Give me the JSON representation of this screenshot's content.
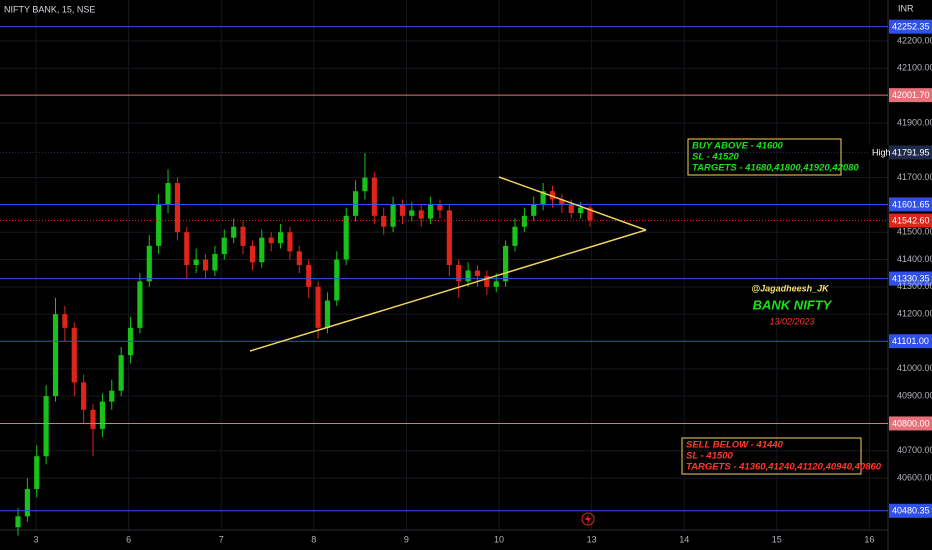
{
  "chart_data": {
    "type": "candlestick",
    "title": "NIFTY BANK, 15, NSE",
    "currency": "INR",
    "categories": [
      "3",
      "6",
      "7",
      "8",
      "9",
      "10",
      "13",
      "14",
      "15",
      "16"
    ],
    "up_color": "#19c219",
    "down_color": "#e0241a",
    "grid": true,
    "ylim": [
      40410,
      42350
    ],
    "yticks": [
      {
        "value": 40600,
        "label": "40600.00"
      },
      {
        "value": 40700,
        "label": "40700.00"
      },
      {
        "value": 40900,
        "label": "40900.00"
      },
      {
        "value": 41000,
        "label": "41000.00"
      },
      {
        "value": 41200,
        "label": "41200.00"
      },
      {
        "value": 41300,
        "label": "41300.00"
      },
      {
        "value": 41400,
        "label": "41400.00"
      },
      {
        "value": 41500,
        "label": "41500.00"
      },
      {
        "value": 41700,
        "label": "41700.00"
      },
      {
        "value": 41900,
        "label": "41900.00"
      },
      {
        "value": 42100,
        "label": "42100.00"
      },
      {
        "value": 42200,
        "label": "42200.00"
      }
    ],
    "open": [
      40420,
      40460,
      40560,
      40680,
      40900,
      41200,
      41150,
      40950,
      40850,
      40780,
      40880,
      40920,
      41050,
      41150,
      41320,
      41450,
      41600,
      41680,
      41500,
      41380,
      41400,
      41360,
      41420,
      41480,
      41520,
      41450,
      41390,
      41480,
      41460,
      41500,
      41430,
      41380,
      41300,
      41150,
      41250,
      41400,
      41560,
      41650,
      41700,
      41560,
      41520,
      41600,
      41560,
      41580,
      41550,
      41600,
      41580,
      41380,
      41320,
      41360,
      41340,
      41300,
      41320,
      41450,
      41520,
      41560,
      41600,
      41650,
      41620,
      41600,
      41570,
      41590
    ],
    "high": [
      40490,
      40600,
      40720,
      40940,
      41260,
      41230,
      41170,
      40980,
      40870,
      40910,
      40960,
      41080,
      41190,
      41350,
      41490,
      41640,
      41730,
      41700,
      41520,
      41440,
      41420,
      41450,
      41510,
      41550,
      41540,
      41470,
      41510,
      41500,
      41530,
      41520,
      41450,
      41400,
      41320,
      41280,
      41430,
      41590,
      41690,
      41790,
      41720,
      41590,
      41630,
      41620,
      41610,
      41600,
      41630,
      41620,
      41600,
      41400,
      41390,
      41380,
      41360,
      41350,
      41470,
      41550,
      41590,
      41630,
      41680,
      41670,
      41640,
      41620,
      41610,
      41600
    ],
    "low": [
      40390,
      40440,
      40530,
      40650,
      40880,
      41100,
      40900,
      40800,
      40680,
      40750,
      40850,
      40900,
      41020,
      41130,
      41300,
      41420,
      41570,
      41470,
      41330,
      41350,
      41330,
      41340,
      41400,
      41460,
      41420,
      41360,
      41370,
      41430,
      41440,
      41400,
      41350,
      41260,
      41110,
      41130,
      41230,
      41380,
      41540,
      41620,
      41530,
      41490,
      41500,
      41530,
      41540,
      41520,
      41530,
      41550,
      41340,
      41260,
      41300,
      41300,
      41270,
      41280,
      41300,
      41430,
      41500,
      41540,
      41580,
      41590,
      41570,
      41550,
      41550,
      41520
    ],
    "close": [
      40460,
      40560,
      40680,
      40900,
      41200,
      41150,
      40950,
      40850,
      40780,
      40880,
      40920,
      41050,
      41150,
      41320,
      41450,
      41600,
      41680,
      41500,
      41380,
      41400,
      41360,
      41420,
      41480,
      41520,
      41450,
      41390,
      41480,
      41460,
      41500,
      41430,
      41380,
      41300,
      41150,
      41250,
      41400,
      41560,
      41650,
      41700,
      41560,
      41520,
      41600,
      41560,
      41580,
      41550,
      41600,
      41580,
      41380,
      41320,
      41360,
      41340,
      41300,
      41320,
      41450,
      41520,
      41560,
      41600,
      41650,
      41620,
      41600,
      41570,
      41590,
      41543
    ],
    "levels": [
      {
        "value": 42252.35,
        "color": "#3150e8"
      },
      {
        "value": 42001.7,
        "label": "42001.70",
        "color": "#e8707a"
      },
      {
        "value": 41791.95,
        "color": "#1e2a4a",
        "tag": "High"
      },
      {
        "value": 41601.65,
        "color": "#3150e8"
      },
      {
        "value": 41542.6,
        "label": "41542.60",
        "color": "#e0241a"
      },
      {
        "value": 41330.35,
        "color": "#3150e8"
      },
      {
        "value": 41101,
        "label": "41101.00",
        "color": "#3150e8"
      },
      {
        "value": 40800,
        "label": "40800.00",
        "color": "#e8707a"
      },
      {
        "value": 40480.35,
        "color": "#3150e8"
      }
    ],
    "buy_box": [
      "BUY ABOVE - 41600",
      "SL - 41520",
      "TARGETS - 41680,41800,41920,42080"
    ],
    "sell_box": [
      "SELL BELOW - 41440",
      "SL - 41500",
      "TARGETS - 41360,41240,41120,40940,40860"
    ],
    "watermark": {
      "author": "@Jagadheesh_JK",
      "name": "BANK NIFTY",
      "date": "13/02/2023"
    }
  }
}
